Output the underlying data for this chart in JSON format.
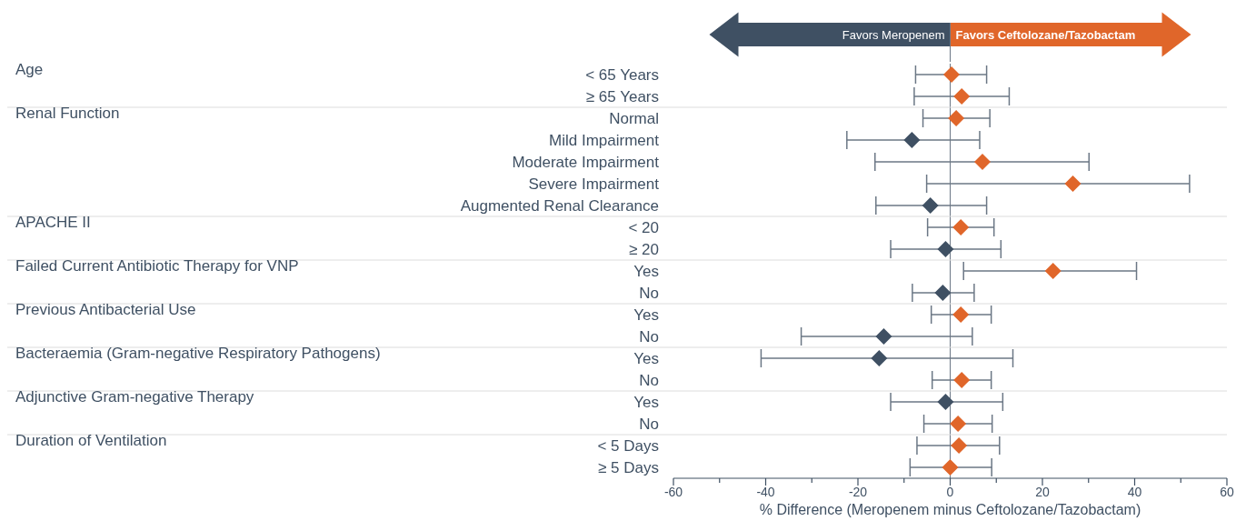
{
  "chart_data": {
    "type": "scatter",
    "orientation": "horizontal",
    "marker": "diamond",
    "grid": false,
    "legend": false,
    "xlabel": "% Difference (Meropenem minus Ceftolozane/Tazobactam)",
    "categories": [
      "< 65 Years",
      "≥ 65 Years",
      "Normal",
      "Mild Impairment",
      "Moderate Impairment",
      "Severe Impairment",
      "Augmented Renal Clearance",
      "< 20",
      "≥ 20",
      "Yes",
      "No",
      "Yes",
      "No",
      "Yes",
      "No",
      "Yes",
      "No",
      "< 5 Days",
      "≥ 5 Days"
    ],
    "values": [
      0.3,
      2.5,
      1.3,
      -8.3,
      7,
      26.6,
      -4.3,
      2.3,
      -1,
      22.3,
      -1.6,
      2.3,
      -14.4,
      -15.4,
      2.5,
      -1,
      1.7,
      1.9,
      0
    ],
    "errors": [
      [
        -7.5,
        7.9
      ],
      [
        -7.8,
        12.8
      ],
      [
        -5.9,
        8.6
      ],
      [
        -22.4,
        6.4
      ],
      [
        -16.3,
        30.1
      ],
      [
        -5.1,
        51.9
      ],
      [
        -16.1,
        7.9
      ],
      [
        -4.9,
        9.5
      ],
      [
        -12.9,
        11
      ],
      [
        2.9,
        40.4
      ],
      [
        -8.2,
        5.2
      ],
      [
        -4.1,
        8.9
      ],
      [
        -32.3,
        4.8
      ],
      [
        -41,
        13.6
      ],
      [
        -3.9,
        8.9
      ],
      [
        -12.9,
        11.4
      ],
      [
        -5.7,
        9.1
      ],
      [
        -7.2,
        10.7
      ],
      [
        -8.7,
        9
      ]
    ],
    "colors": [
      "#e0662a",
      "#e0662a",
      "#e0662a",
      "#3f5063",
      "#e0662a",
      "#e0662a",
      "#3f5063",
      "#e0662a",
      "#3f5063",
      "#e0662a",
      "#3f5063",
      "#e0662a",
      "#3f5063",
      "#3f5063",
      "#e0662a",
      "#3f5063",
      "#e0662a",
      "#e0662a",
      "#e0662a"
    ],
    "xlim": [
      -60,
      60
    ],
    "xticks": [
      -60,
      {
        "value": -50,
        "label": null
      },
      -40,
      {
        "value": -30,
        "label": null
      },
      -20,
      {
        "value": -10,
        "label": null
      },
      0,
      {
        "value": 10,
        "label": null
      },
      20,
      {
        "value": 30,
        "label": null
      },
      40,
      {
        "value": 50,
        "label": null
      },
      60
    ],
    "ref_lines": [
      {
        "axis": "x",
        "value": 0,
        "color": "#6b7785"
      }
    ],
    "annotations": [
      "Favors Meropenem",
      "Favors Ceftolozane/Tazobactam",
      "Age",
      "Renal Function",
      "APACHE II",
      "Failed Current Antibiotic Therapy for VNP",
      "Previous Antibacterial Use",
      "Bacteraemia (Gram-negative Respiratory Pathogens)",
      "Adjunctive Gram-negative Therapy",
      "Duration of  Ventilation"
    ]
  }
}
